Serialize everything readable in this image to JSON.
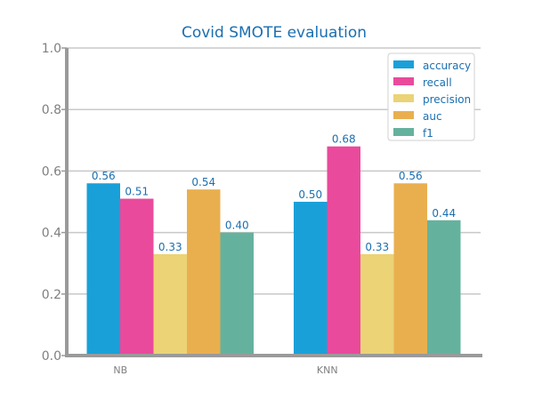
{
  "chart_data": {
    "type": "bar",
    "title": "Covid SMOTE evaluation",
    "categories": [
      "NB",
      "KNN"
    ],
    "series": [
      {
        "name": "accuracy",
        "color": "#1aa0d8",
        "values": [
          0.56,
          0.5
        ],
        "labels": [
          "0.56",
          "0.50"
        ]
      },
      {
        "name": "recall",
        "color": "#ea4a9c",
        "values": [
          0.51,
          0.68
        ],
        "labels": [
          "0.51",
          "0.68"
        ]
      },
      {
        "name": "precision",
        "color": "#ebd376",
        "values": [
          0.33,
          0.33
        ],
        "labels": [
          "0.33",
          "0.33"
        ]
      },
      {
        "name": "auc",
        "color": "#e9af4f",
        "values": [
          0.54,
          0.56
        ],
        "labels": [
          "0.54",
          "0.56"
        ]
      },
      {
        "name": "f1",
        "color": "#64b29e",
        "values": [
          0.4,
          0.44
        ],
        "labels": [
          "0.40",
          "0.44"
        ]
      }
    ],
    "ylim": [
      0.0,
      1.0
    ],
    "yticks": [
      "0.0",
      "0.2",
      "0.4",
      "0.6",
      "0.8",
      "1.0"
    ],
    "grid": true,
    "legend_position": "top-right"
  }
}
